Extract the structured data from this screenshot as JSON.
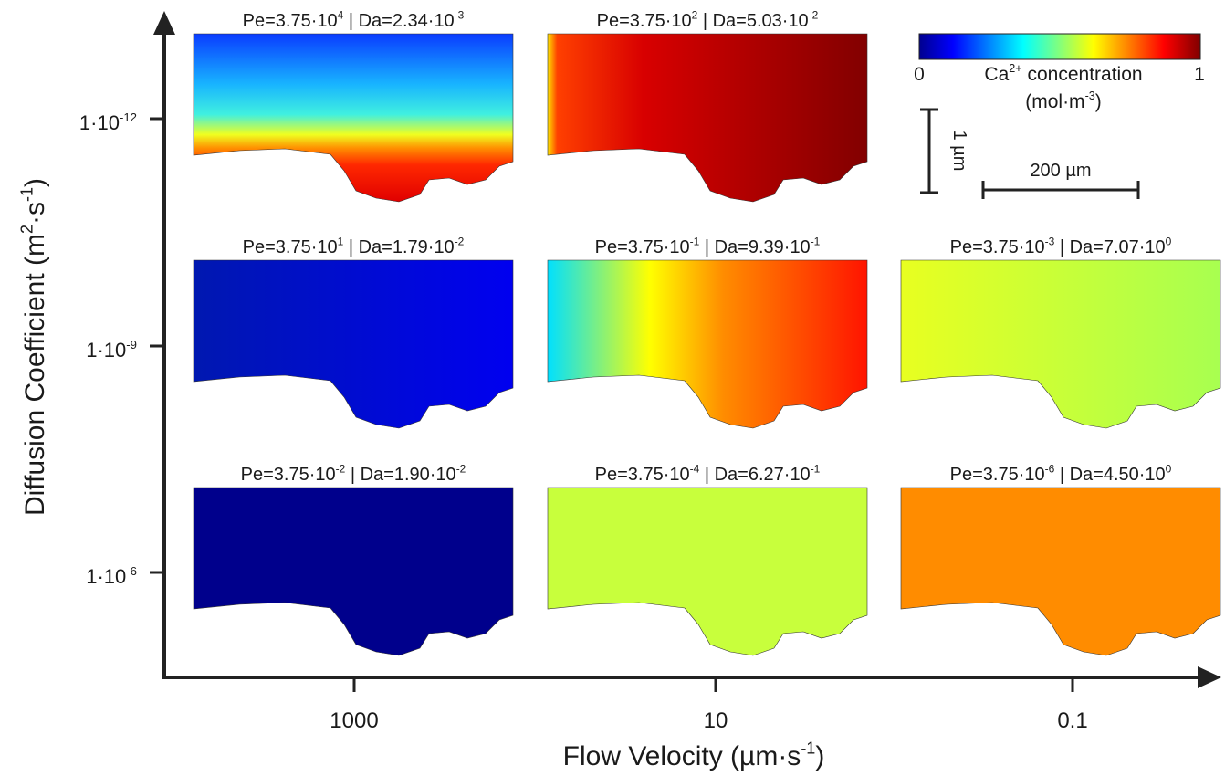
{
  "y_axis": {
    "label": [
      "Diffusion Coefficient (m",
      "2",
      "·s",
      "-1",
      ")"
    ],
    "ticks": [
      [
        "1·10",
        "-12"
      ],
      [
        "1·10",
        "-9"
      ],
      [
        "1·10",
        "-6"
      ]
    ]
  },
  "x_axis": {
    "label": [
      "Flow Velocity (µm·s",
      "-1",
      ")"
    ],
    "ticks": [
      "1000",
      "10",
      "0.1"
    ]
  },
  "panels": [
    {
      "title": [
        "Pe=3.75·10",
        "4",
        " | Da=2.34·10",
        "-3"
      ],
      "gradient": {
        "direction": "vertical",
        "stops": [
          [
            0,
            "#0a3cff"
          ],
          [
            0.3,
            "#18b4ff"
          ],
          [
            0.48,
            "#40f0e0"
          ],
          [
            0.6,
            "#f0ff20"
          ],
          [
            0.68,
            "#ff9000"
          ],
          [
            0.78,
            "#ff2800"
          ],
          [
            1,
            "#e00000"
          ]
        ]
      }
    },
    {
      "title": [
        "Pe=3.75·10",
        "2",
        " | Da=5.03·10",
        "-2"
      ],
      "gradient": {
        "direction": "horizontal",
        "stops": [
          [
            0,
            "#ffe000"
          ],
          [
            0.03,
            "#ff4000"
          ],
          [
            0.3,
            "#d80000"
          ],
          [
            1,
            "#820000"
          ]
        ]
      }
    },
    {
      "title": [
        "Pe=3.75·10",
        "1",
        " | Da=1.79·10",
        "-2"
      ],
      "gradient": {
        "direction": "horizontal",
        "stops": [
          [
            0,
            "#0018b0"
          ],
          [
            1,
            "#0000f0"
          ]
        ]
      }
    },
    {
      "title": [
        "Pe=3.75·10",
        "-1",
        " | Da=9.39·10",
        "-1"
      ],
      "gradient": {
        "direction": "horizontal",
        "stops": [
          [
            0,
            "#00e0ff"
          ],
          [
            0.32,
            "#ffff00"
          ],
          [
            0.55,
            "#ff8c00"
          ],
          [
            1,
            "#ff1400"
          ]
        ]
      }
    },
    {
      "title": [
        "Pe=3.75·10",
        "-3",
        " | Da=7.07·10",
        "0"
      ],
      "gradient": {
        "direction": "horizontal",
        "stops": [
          [
            0,
            "#e8ff20"
          ],
          [
            1,
            "#a8ff50"
          ]
        ]
      }
    },
    {
      "title": [
        "Pe=3.75·10",
        "-2",
        " | Da=1.90·10",
        "-2"
      ],
      "gradient": {
        "direction": "horizontal",
        "stops": [
          [
            0,
            "#00008c"
          ],
          [
            1,
            "#00008c"
          ]
        ]
      }
    },
    {
      "title": [
        "Pe=3.75·10",
        "-4",
        " | Da=6.27·10",
        "-1"
      ],
      "gradient": {
        "direction": "horizontal",
        "stops": [
          [
            0,
            "#c8ff3c"
          ],
          [
            1,
            "#c8ff3c"
          ]
        ]
      }
    },
    {
      "title": [
        "Pe=3.75·10",
        "-6",
        " | Da=4.50·10",
        "0"
      ],
      "gradient": {
        "direction": "horizontal",
        "stops": [
          [
            0,
            "#ff8c00"
          ],
          [
            1,
            "#ff8c00"
          ]
        ]
      }
    }
  ],
  "colorbar": {
    "stops": [
      [
        0,
        "#00008f"
      ],
      [
        0.12,
        "#0000ff"
      ],
      [
        0.37,
        "#00ffff"
      ],
      [
        0.62,
        "#ffff00"
      ],
      [
        0.87,
        "#ff0000"
      ],
      [
        1,
        "#800000"
      ]
    ],
    "min_label": "0",
    "max_label": "1",
    "label": [
      "Ca",
      "2+",
      " concentration"
    ],
    "units": [
      "(mol·m",
      "-3",
      ")"
    ]
  },
  "scale_bars": {
    "vertical": "1 µm",
    "horizontal": "200 µm"
  }
}
